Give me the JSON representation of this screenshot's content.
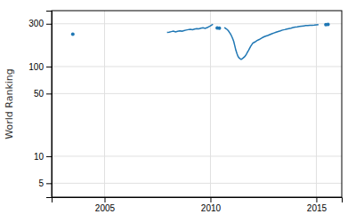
{
  "chart_data": {
    "type": "line",
    "y_label": "World Ranking",
    "log": "y",
    "grid": true,
    "xlim": [
      2002.5,
      2016.2
    ],
    "xticks": [
      2005,
      2010,
      2015
    ],
    "ylim": [
      3.5,
      420
    ],
    "yticks": [
      5,
      10,
      50,
      100,
      300
    ],
    "series": [
      {
        "type": "scatter",
        "x": [
          2003.5
        ],
        "values": [
          230
        ]
      },
      {
        "type": "line",
        "x": [
          2007.95,
          2008.05,
          2008.15,
          2008.25,
          2008.35,
          2008.45,
          2008.55,
          2008.65,
          2008.75,
          2008.85,
          2008.95,
          2009.05,
          2009.15,
          2009.25,
          2009.35,
          2009.45,
          2009.55,
          2009.65,
          2009.75,
          2009.85,
          2009.92,
          2009.98,
          2010.03,
          2010.08,
          2010.12
        ],
        "values": [
          240,
          242,
          245,
          248,
          243,
          247,
          250,
          248,
          252,
          255,
          258,
          260,
          258,
          262,
          265,
          263,
          268,
          270,
          267,
          272,
          278,
          282,
          288,
          293,
          296
        ]
      },
      {
        "type": "scatter",
        "x": [
          2010.32,
          2010.42
        ],
        "values": [
          270,
          268
        ]
      },
      {
        "type": "line",
        "x": [
          2010.65,
          2010.7,
          2010.75,
          2010.8,
          2010.85,
          2010.9,
          2010.95,
          2011.0,
          2011.05,
          2011.1,
          2011.15,
          2011.2,
          2011.25,
          2011.3,
          2011.35,
          2011.4,
          2011.45,
          2011.5,
          2011.55,
          2011.6,
          2011.65,
          2011.7,
          2011.75,
          2011.8,
          2011.85,
          2011.9,
          2011.95,
          2012.0,
          2012.1,
          2012.2,
          2012.3,
          2012.4,
          2012.5,
          2012.6,
          2012.7,
          2012.8,
          2012.9,
          2013.0,
          2013.1,
          2013.2,
          2013.3,
          2013.4,
          2013.5,
          2013.6,
          2013.7,
          2013.8,
          2013.9,
          2014.0,
          2014.1,
          2014.2,
          2014.3,
          2014.4,
          2014.5,
          2014.6,
          2014.7,
          2014.8,
          2014.9,
          2015.0,
          2015.1
        ],
        "values": [
          272,
          268,
          263,
          257,
          250,
          240,
          230,
          218,
          205,
          190,
          170,
          152,
          140,
          130,
          125,
          122,
          120,
          122,
          125,
          128,
          132,
          138,
          145,
          152,
          160,
          168,
          175,
          182,
          188,
          195,
          200,
          207,
          213,
          218,
          222,
          227,
          232,
          237,
          242,
          246,
          250,
          255,
          258,
          262,
          265,
          268,
          272,
          275,
          277,
          280,
          282,
          284,
          286,
          287,
          288,
          289,
          290,
          292,
          293
        ]
      },
      {
        "type": "scatter",
        "x": [
          2015.45,
          2015.55
        ],
        "values": [
          294,
          295
        ]
      }
    ]
  }
}
